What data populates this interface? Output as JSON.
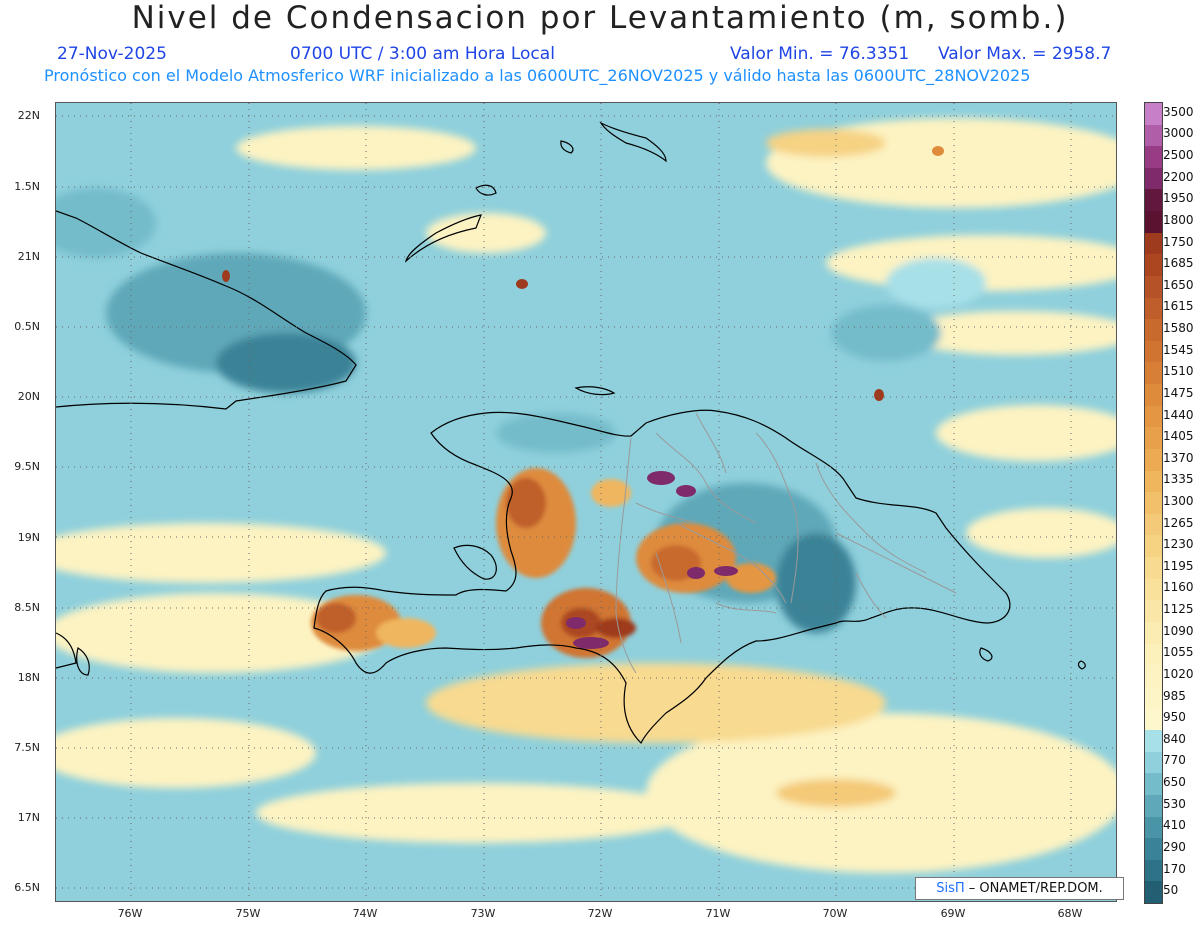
{
  "header": {
    "title": "Nivel de Condensacion por Levantamiento (m, somb.)",
    "date": "27-Nov-2025",
    "valid_time": "0700 UTC / 3:00 am Hora Local",
    "min_label": "Valor Min. = 76.3351",
    "max_label": "Valor Max. = 2958.7",
    "subtitle": "Pronóstico con el Modelo Atmosferico WRF inicializado a las 0600UTC_26NOV2025 y válido hasta las  0600UTC_28NOV2025"
  },
  "axes": {
    "lat_labels": [
      "22N",
      "1.5N",
      "21N",
      "0.5N",
      "20N",
      "9.5N",
      "19N",
      "8.5N",
      "18N",
      "7.5N",
      "17N",
      "6.5N"
    ],
    "lon_labels": [
      "76W",
      "75W",
      "74W",
      "73W",
      "72W",
      "71W",
      "70W",
      "69W",
      "68W"
    ]
  },
  "legend": {
    "levels": [
      "3500",
      "3000",
      "2500",
      "2200",
      "1950",
      "1800",
      "1750",
      "1685",
      "1650",
      "1615",
      "1580",
      "1545",
      "1510",
      "1475",
      "1440",
      "1405",
      "1370",
      "1335",
      "1300",
      "1265",
      "1230",
      "1195",
      "1160",
      "1125",
      "1090",
      "1055",
      "1020",
      "985",
      "950",
      "840",
      "770",
      "650",
      "530",
      "410",
      "290",
      "170",
      "50"
    ],
    "colors": [
      "#c77fc8",
      "#b05ea8",
      "#973c85",
      "#7f2a6a",
      "#62173f",
      "#5a1230",
      "#9e3a1e",
      "#ab4620",
      "#b55227",
      "#bf5e2a",
      "#c8692e",
      "#d07431",
      "#d77f36",
      "#de8b3c",
      "#e49642",
      "#e8a14a",
      "#ecab53",
      "#f0b65e",
      "#f2c06a",
      "#f4c977",
      "#f6d283",
      "#f8da90",
      "#f9e19c",
      "#fae7a8",
      "#fbecb2",
      "#fcf0bb",
      "#fdf3c2",
      "#fdf5c6",
      "#fdf7cb",
      "#a8e0e8",
      "#8fd0dc",
      "#75bccb",
      "#5ea8b9",
      "#4a94a8",
      "#3a8297",
      "#2d7286",
      "#225f73"
    ]
  },
  "credit": {
    "brand": "SisΠ",
    "text": " – ONAMET/REP.DOM."
  },
  "colors": {
    "header_blue": "#1f45e6",
    "subtitle_blue": "#1e90ff",
    "ocean_teal": "#8fd0dc",
    "land_outline": "#000000",
    "province_lines": "#9a9a9a"
  }
}
